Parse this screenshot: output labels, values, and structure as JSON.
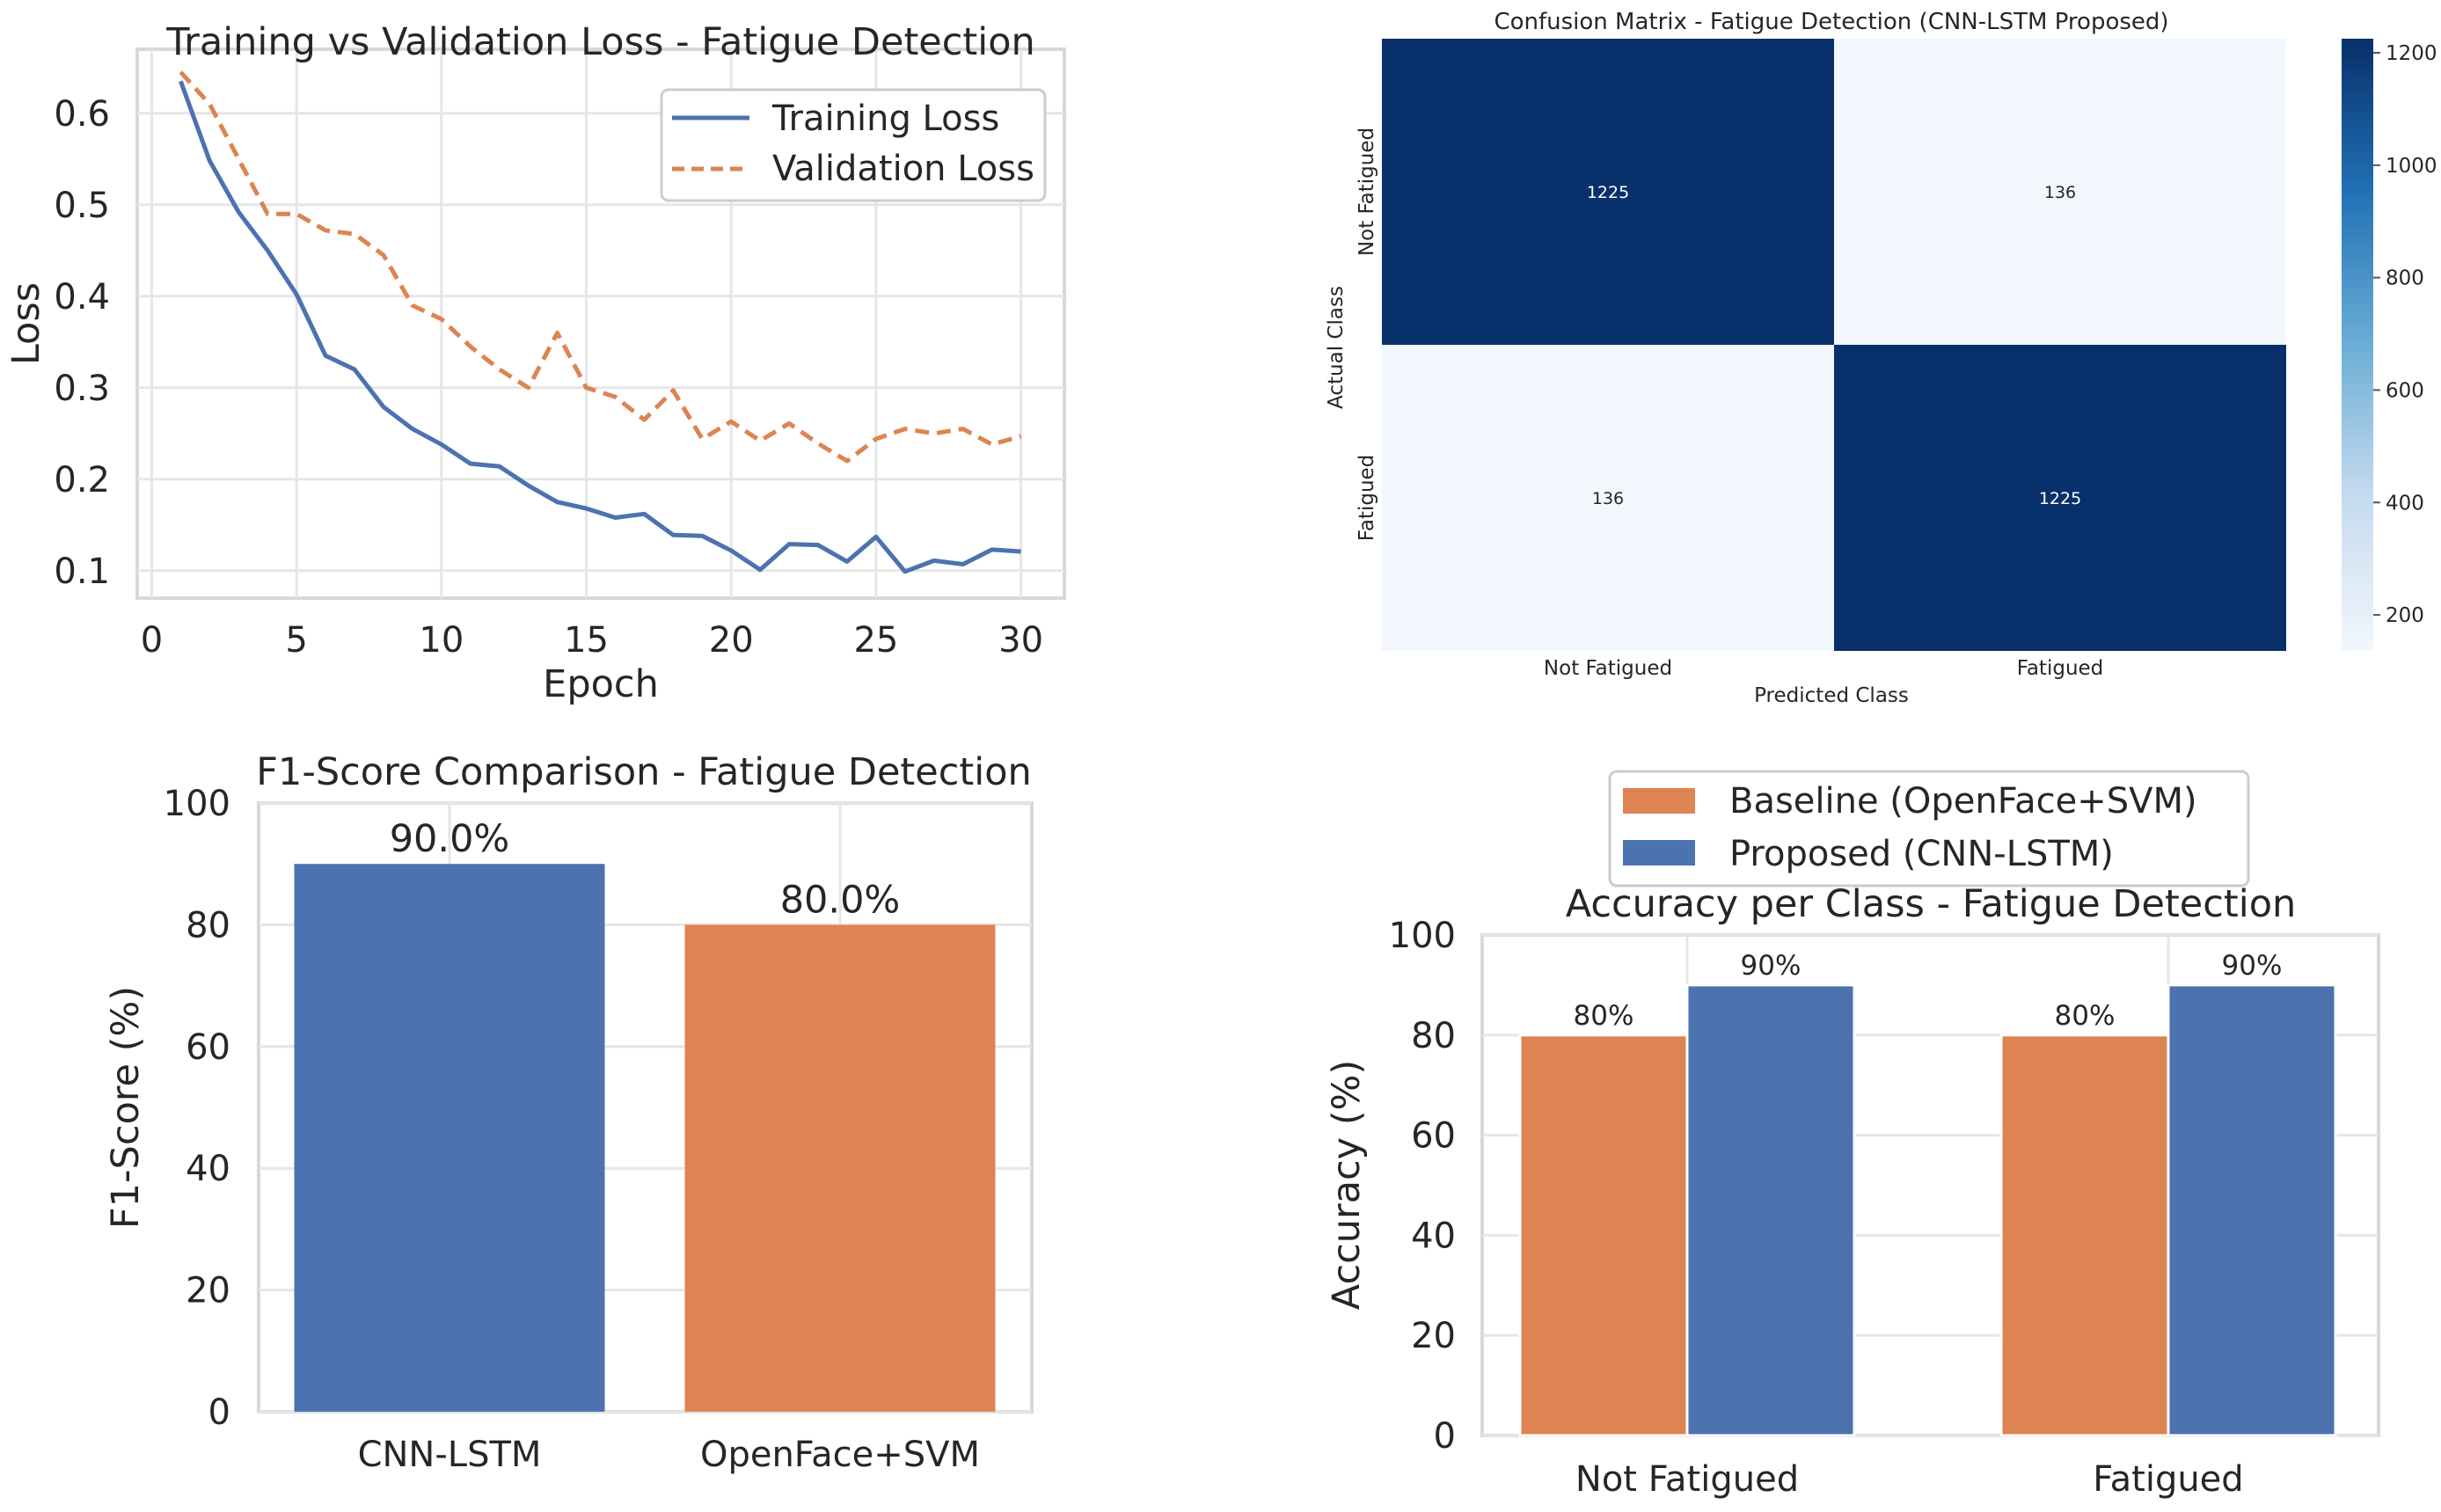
{
  "chart_data": [
    {
      "type": "line",
      "title": "Training vs Validation Loss - Fatigue Detection",
      "xlabel": "Epoch",
      "ylabel": "Loss",
      "xlim": [
        -0.5,
        31.5
      ],
      "ylim": [
        0.07,
        0.67
      ],
      "xticks": [
        0,
        5,
        10,
        15,
        20,
        25,
        30
      ],
      "yticks": [
        0.1,
        0.2,
        0.3,
        0.4,
        0.5,
        0.6
      ],
      "ytick_labels": [
        "0.1",
        "0.2",
        "0.3",
        "0.4",
        "0.5",
        "0.6"
      ],
      "grid": true,
      "legend_position": "top-right",
      "x": [
        1,
        2,
        3,
        4,
        5,
        6,
        7,
        8,
        9,
        10,
        11,
        12,
        13,
        14,
        15,
        16,
        17,
        18,
        19,
        20,
        21,
        22,
        23,
        24,
        25,
        26,
        27,
        28,
        29,
        30
      ],
      "series": [
        {
          "name": "Training Loss",
          "color": "#4c72b0",
          "style": "solid",
          "values": [
            0.635,
            0.548,
            0.492,
            0.45,
            0.402,
            0.335,
            0.32,
            0.279,
            0.255,
            0.238,
            0.217,
            0.214,
            0.193,
            0.175,
            0.168,
            0.158,
            0.162,
            0.139,
            0.138,
            0.122,
            0.101,
            0.129,
            0.128,
            0.11,
            0.137,
            0.099,
            0.111,
            0.107,
            0.123,
            0.121
          ]
        },
        {
          "name": "Validation Loss",
          "color": "#dd8452",
          "style": "dashed",
          "values": [
            0.645,
            0.61,
            0.55,
            0.49,
            0.49,
            0.472,
            0.468,
            0.445,
            0.39,
            0.375,
            0.345,
            0.32,
            0.3,
            0.36,
            0.3,
            0.29,
            0.265,
            0.297,
            0.244,
            0.263,
            0.242,
            0.261,
            0.239,
            0.22,
            0.244,
            0.255,
            0.25,
            0.255,
            0.238,
            0.247
          ]
        }
      ]
    },
    {
      "type": "heatmap",
      "title": "Confusion Matrix - Fatigue Detection (CNN-LSTM Proposed)",
      "xlabel": "Predicted Class",
      "ylabel": "Actual Class",
      "x_categories": [
        "Not Fatigued",
        "Fatigued"
      ],
      "y_categories": [
        "Not Fatigued",
        "Fatigued"
      ],
      "values": [
        [
          1225,
          136
        ],
        [
          136,
          1225
        ]
      ],
      "cell_labels": [
        [
          "1225",
          "136"
        ],
        [
          "136",
          "1225"
        ]
      ],
      "colormap": "Blues",
      "colorbar_range": [
        136,
        1225
      ],
      "colorbar_ticks": [
        200,
        400,
        600,
        800,
        1000,
        1200
      ],
      "colorbar_tick_labels": [
        "200",
        "400",
        "600",
        "800",
        "1000",
        "1200"
      ]
    },
    {
      "type": "bar",
      "title": "F1-Score Comparison - Fatigue Detection",
      "xlabel": "",
      "ylabel": "F1-Score (%)",
      "ylim": [
        0,
        100
      ],
      "yticks": [
        0,
        20,
        40,
        60,
        80,
        100
      ],
      "categories": [
        "CNN-LSTM",
        "OpenFace+SVM"
      ],
      "values": [
        90.0,
        80.0
      ],
      "value_labels": [
        "90.0%",
        "80.0%"
      ],
      "colors": [
        "#4c72b0",
        "#dd8452"
      ],
      "grid": true
    },
    {
      "type": "bar",
      "title": "Accuracy per Class - Fatigue Detection",
      "xlabel": "",
      "ylabel": "Accuracy (%)",
      "ylim": [
        0,
        100
      ],
      "yticks": [
        0,
        20,
        40,
        60,
        80,
        100
      ],
      "categories": [
        "Not Fatigued",
        "Fatigued"
      ],
      "legend_position": "top-center",
      "grid": true,
      "series": [
        {
          "name": "Baseline (OpenFace+SVM)",
          "color": "#dd8452",
          "values": [
            80,
            80
          ],
          "value_labels": [
            "80%",
            "80%"
          ]
        },
        {
          "name": "Proposed (CNN-LSTM)",
          "color": "#4c72b0",
          "values": [
            90,
            90
          ],
          "value_labels": [
            "90%",
            "90%"
          ]
        }
      ]
    }
  ]
}
